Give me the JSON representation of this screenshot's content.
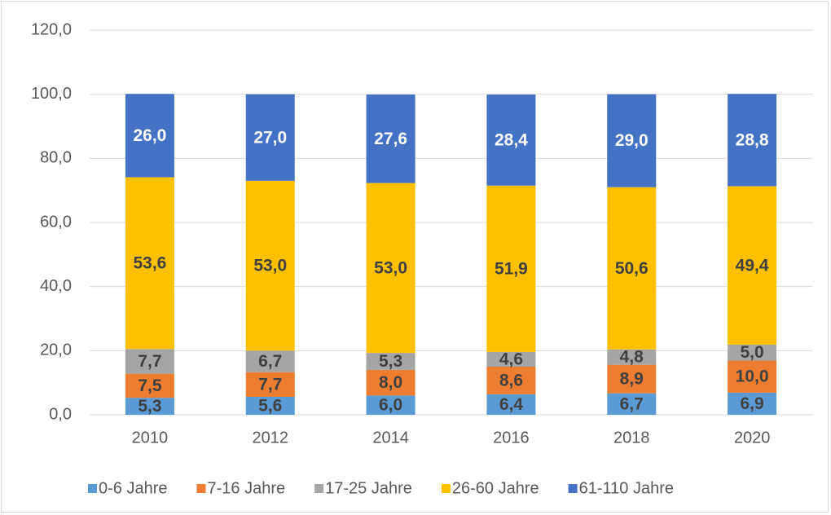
{
  "chart_data": {
    "type": "stacked_bar",
    "categories": [
      "2010",
      "2012",
      "2014",
      "2016",
      "2018",
      "2020"
    ],
    "series": [
      {
        "name": "0-6 Jahre",
        "color": "#5b9bd5",
        "values": [
          5.3,
          5.6,
          6.0,
          6.4,
          6.7,
          6.9
        ],
        "value_labels": [
          "5,3",
          "5,6",
          "6,0",
          "6,4",
          "6,7",
          "6,9"
        ]
      },
      {
        "name": "7-16 Jahre",
        "color": "#ed7d31",
        "values": [
          7.5,
          7.7,
          8.0,
          8.6,
          8.9,
          10.0
        ],
        "value_labels": [
          "7,5",
          "7,7",
          "8,0",
          "8,6",
          "8,9",
          "10,0"
        ]
      },
      {
        "name": "17-25 Jahre",
        "color": "#a5a5a5",
        "values": [
          7.7,
          6.7,
          5.3,
          4.6,
          4.8,
          5.0
        ],
        "value_labels": [
          "7,7",
          "6,7",
          "5,3",
          "4,6",
          "4,8",
          "5,0"
        ]
      },
      {
        "name": "26-60 Jahre",
        "color": "#ffc000",
        "values": [
          53.6,
          53.0,
          53.0,
          51.9,
          50.6,
          49.4
        ],
        "value_labels": [
          "53,6",
          "53,0",
          "53,0",
          "51,9",
          "50,6",
          "49,4"
        ]
      },
      {
        "name": "61-110 Jahre",
        "color": "#4472c4",
        "values": [
          26.0,
          27.0,
          27.6,
          28.4,
          29.0,
          28.8
        ],
        "value_labels": [
          "26,0",
          "27,0",
          "27,6",
          "28,4",
          "29,0",
          "28,8"
        ]
      }
    ],
    "ylim": [
      0,
      120
    ],
    "yticks": [
      {
        "value": 0,
        "label": "0,0"
      },
      {
        "value": 20,
        "label": "20,0"
      },
      {
        "value": 40,
        "label": "40,0"
      },
      {
        "value": 60,
        "label": "60,0"
      },
      {
        "value": 80,
        "label": "80,0"
      },
      {
        "value": 100,
        "label": "100,0"
      },
      {
        "value": 120,
        "label": "120,0"
      }
    ],
    "grid": true,
    "legend": "bottom"
  }
}
